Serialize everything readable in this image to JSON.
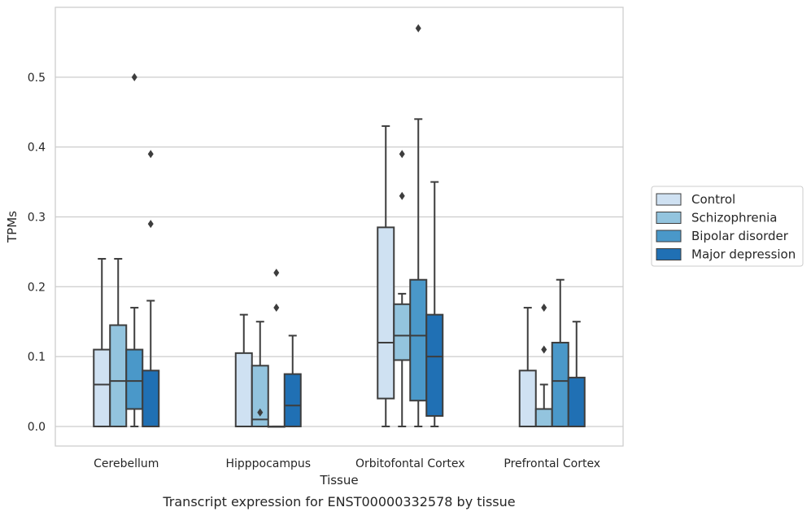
{
  "chart_data": {
    "type": "boxplot",
    "xlabel": "Tissue",
    "ylabel": "TPMs",
    "caption": "Transcript expression for ENST00000332578 by tissue",
    "ylim": [
      -0.028,
      0.6
    ],
    "yticks": [
      0.0,
      0.1,
      0.2,
      0.3,
      0.4,
      0.5
    ],
    "grid": "horizontal",
    "legend_position": "right",
    "categories": [
      "Cerebellum",
      "Hipppocampus",
      "Orbitofontal Cortex",
      "Prefrontal Cortex"
    ],
    "series": [
      {
        "name": "Control",
        "color": "#cfe1f2",
        "boxes": [
          {
            "q1": 0.0,
            "median": 0.06,
            "q3": 0.11,
            "whislo": 0.0,
            "whishi": 0.24,
            "outliers": []
          },
          {
            "q1": 0.0,
            "median": 0.0,
            "q3": 0.105,
            "whislo": 0.0,
            "whishi": 0.16,
            "outliers": []
          },
          {
            "q1": 0.04,
            "median": 0.12,
            "q3": 0.285,
            "whislo": 0.0,
            "whishi": 0.43,
            "outliers": []
          },
          {
            "q1": 0.0,
            "median": 0.0,
            "q3": 0.08,
            "whislo": 0.0,
            "whishi": 0.17,
            "outliers": []
          }
        ]
      },
      {
        "name": "Schizophrenia",
        "color": "#93c4de",
        "boxes": [
          {
            "q1": 0.0,
            "median": 0.065,
            "q3": 0.145,
            "whislo": 0.0,
            "whishi": 0.24,
            "outliers": []
          },
          {
            "q1": 0.0,
            "median": 0.01,
            "q3": 0.087,
            "whislo": 0.0,
            "whishi": 0.15,
            "outliers": [
              0.02
            ]
          },
          {
            "q1": 0.095,
            "median": 0.13,
            "q3": 0.175,
            "whislo": 0.0,
            "whishi": 0.19,
            "outliers": [
              0.33,
              0.39
            ]
          },
          {
            "q1": 0.0,
            "median": 0.025,
            "q3": 0.025,
            "whislo": 0.0,
            "whishi": 0.06,
            "outliers": [
              0.11,
              0.17
            ]
          }
        ]
      },
      {
        "name": "Bipolar disorder",
        "color": "#4a98c9",
        "boxes": [
          {
            "q1": 0.025,
            "median": 0.065,
            "q3": 0.11,
            "whislo": 0.0,
            "whishi": 0.17,
            "outliers": [
              0.5
            ]
          },
          {
            "q1": 0.0,
            "median": 0.0,
            "q3": 0.0,
            "whislo": 0.0,
            "whishi": 0.0,
            "outliers": [
              0.17,
              0.22
            ]
          },
          {
            "q1": 0.037,
            "median": 0.13,
            "q3": 0.21,
            "whislo": 0.0,
            "whishi": 0.44,
            "outliers": [
              0.57
            ]
          },
          {
            "q1": 0.0,
            "median": 0.065,
            "q3": 0.12,
            "whislo": 0.0,
            "whishi": 0.21,
            "outliers": []
          }
        ]
      },
      {
        "name": "Major depression",
        "color": "#2070b4",
        "boxes": [
          {
            "q1": 0.0,
            "median": 0.0,
            "q3": 0.08,
            "whislo": 0.0,
            "whishi": 0.18,
            "outliers": [
              0.29,
              0.39
            ]
          },
          {
            "q1": 0.0,
            "median": 0.03,
            "q3": 0.075,
            "whislo": 0.0,
            "whishi": 0.13,
            "outliers": []
          },
          {
            "q1": 0.015,
            "median": 0.1,
            "q3": 0.16,
            "whislo": 0.0,
            "whishi": 0.35,
            "outliers": []
          },
          {
            "q1": 0.0,
            "median": 0.0,
            "q3": 0.07,
            "whislo": 0.0,
            "whishi": 0.15,
            "outliers": []
          }
        ]
      }
    ]
  }
}
